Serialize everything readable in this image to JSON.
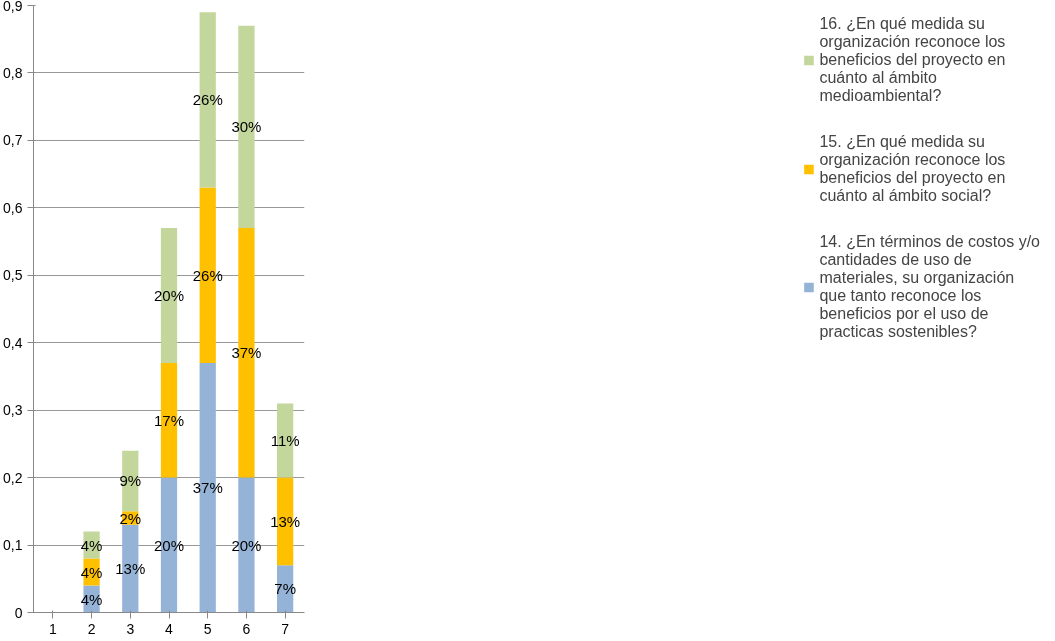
{
  "chart_data": {
    "type": "bar",
    "stacked": true,
    "categories": [
      "1",
      "2",
      "3",
      "4",
      "5",
      "6",
      "7"
    ],
    "series": [
      {
        "name": "14. ¿En términos de costos y/o cantidades de uso de materiales, su organización que tanto reconoce los beneficios por el uso de practicas sostenibles?",
        "color": "#95b3d7",
        "values": [
          0,
          0.04,
          0.13,
          0.2,
          0.37,
          0.2,
          0.07
        ],
        "value_labels": [
          null,
          "4%",
          "13%",
          "20%",
          "37%",
          "20%",
          "7%"
        ]
      },
      {
        "name": "15. ¿En qué medida su organización reconoce los beneficios del proyecto en cuánto al ámbito social?",
        "color": "#ffc000",
        "values": [
          0,
          0.04,
          0.02,
          0.17,
          0.26,
          0.37,
          0.13
        ],
        "value_labels": [
          null,
          "4%",
          "2%",
          "17%",
          "26%",
          "37%",
          "13%"
        ]
      },
      {
        "name": "16. ¿En qué medida su organización reconoce los beneficios del proyecto en cuánto al ámbito medioambiental?",
        "color": "#c3d69b",
        "values": [
          0,
          0.04,
          0.09,
          0.2,
          0.26,
          0.3,
          0.11
        ],
        "value_labels": [
          null,
          "4%",
          "9%",
          "20%",
          "26%",
          "30%",
          "11%"
        ]
      }
    ],
    "ylim": [
      0,
      0.9
    ],
    "yticks": [
      0,
      {
        "value": 0.1,
        "label": "0,1"
      },
      {
        "value": 0.2,
        "label": "0,2"
      },
      {
        "value": 0.3,
        "label": "0,3"
      },
      {
        "value": 0.4,
        "label": "0,4"
      },
      {
        "value": 0.5,
        "label": "0,5"
      },
      {
        "value": 0.6,
        "label": "0,6"
      },
      {
        "value": 0.7,
        "label": "0,7"
      },
      {
        "value": 0.8,
        "label": "0,8"
      },
      {
        "value": 0.9,
        "label": "0,9"
      }
    ],
    "grid": "y",
    "legend": "right"
  }
}
